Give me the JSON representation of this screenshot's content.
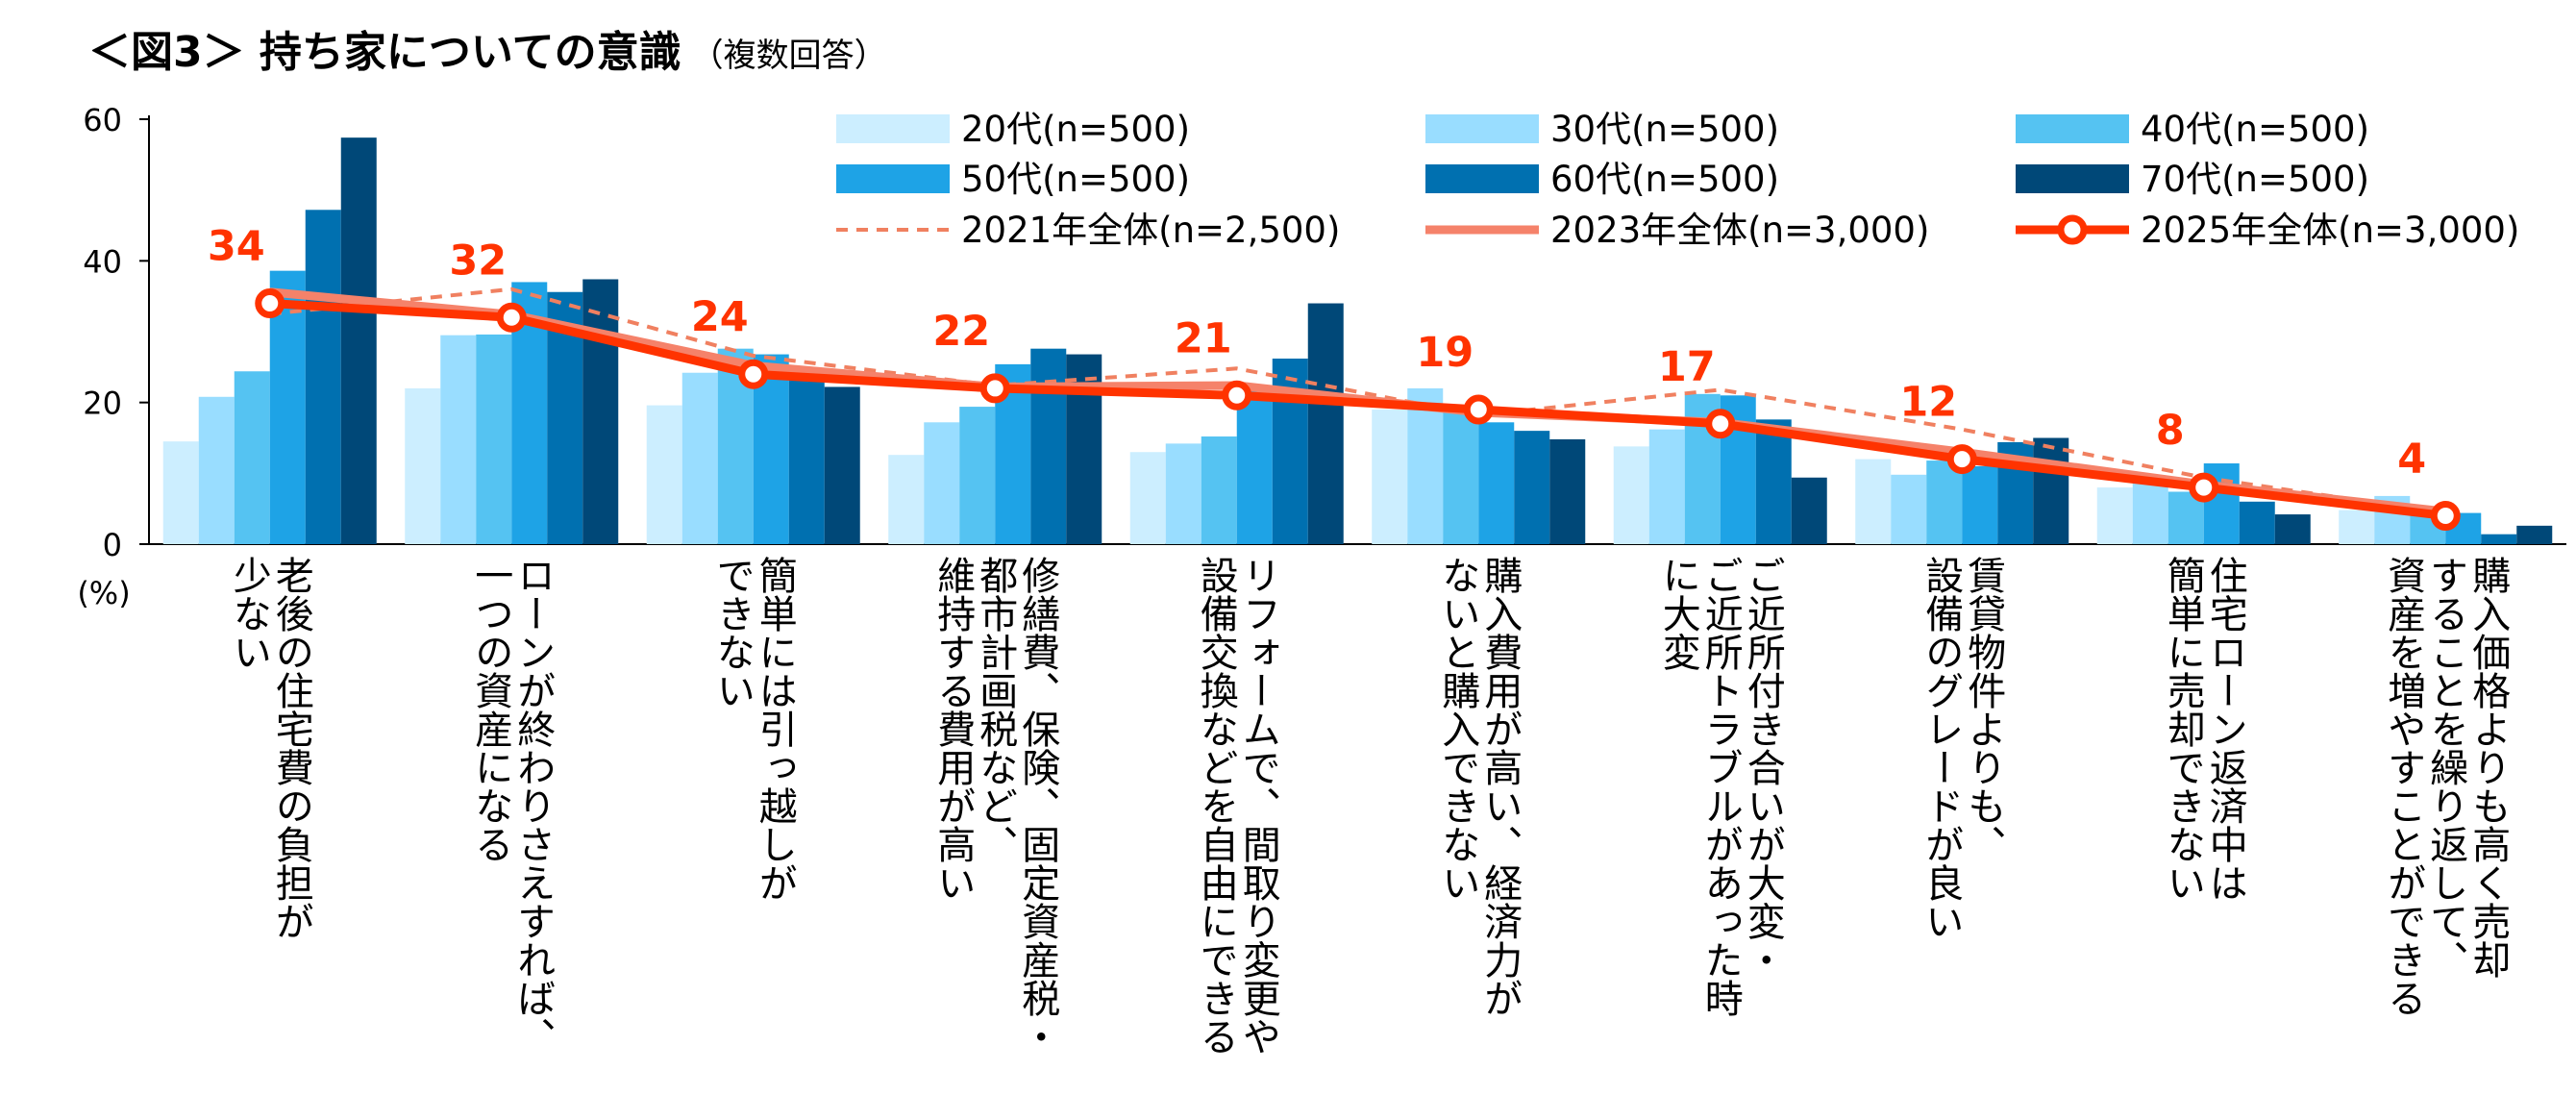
{
  "title": "＜図3＞ 持ち家についての意識",
  "subtitle": "（複数回答）",
  "chart_data": {
    "type": "bar",
    "unit_label": "(%)",
    "ylim": [
      0,
      60
    ],
    "yticks": [
      "0",
      "20",
      "40",
      "60"
    ],
    "grid": false,
    "legend_position": "top-right",
    "categories": [
      [
        "老後の住宅費の負担が",
        "少ない"
      ],
      [
        "ローンが終わりさえすれば、",
        "一つの資産になる"
      ],
      [
        "簡単には引っ越しが",
        "できない"
      ],
      [
        "修繕費、保険、固定資産税・",
        "都市計画税など、",
        "維持する費用が高い"
      ],
      [
        "リフォームで、間取り変更や",
        "設備交換などを自由にできる"
      ],
      [
        "購入費用が高い、経済力が",
        "ないと購入できない"
      ],
      [
        "ご近所付き合いが大変・",
        "ご近所トラブルがあった時",
        "に大変"
      ],
      [
        "賃貸物件よりも、",
        "設備のグレードが良い"
      ],
      [
        "住宅ローン返済中は",
        "簡単に売却できない"
      ],
      [
        "購入価格よりも高く売却",
        "することを繰り返して、",
        "資産を増やすことができる"
      ]
    ],
    "bar_series": [
      {
        "name": "20代(n=500)",
        "color": "#CCEEFF",
        "values": [
          14.5,
          22.0,
          19.6,
          12.6,
          13.0,
          19.0,
          13.8,
          12.0,
          8.0,
          4.8
        ]
      },
      {
        "name": "30代(n=500)",
        "color": "#99DDFF",
        "values": [
          20.8,
          29.5,
          24.2,
          17.2,
          14.2,
          22.0,
          16.2,
          9.8,
          8.6,
          6.8
        ]
      },
      {
        "name": "40代(n=500)",
        "color": "#55C3F2",
        "values": [
          24.4,
          29.6,
          27.6,
          19.4,
          15.2,
          19.0,
          21.2,
          11.8,
          7.4,
          5.0
        ]
      },
      {
        "name": "50代(n=500)",
        "color": "#1EA3E6",
        "values": [
          38.6,
          37.0,
          26.8,
          25.4,
          22.2,
          17.2,
          21.0,
          11.0,
          11.4,
          4.4
        ]
      },
      {
        "name": "60代(n=500)",
        "color": "#0070B0",
        "values": [
          47.2,
          35.6,
          24.0,
          27.6,
          26.2,
          16.0,
          17.6,
          14.4,
          6.0,
          1.4
        ]
      },
      {
        "name": "70代(n=500)",
        "color": "#004878",
        "values": [
          57.4,
          37.4,
          22.2,
          26.8,
          34.0,
          14.8,
          9.4,
          15.0,
          4.2,
          2.6
        ]
      }
    ],
    "line_series": [
      {
        "name": "2021年全体(n=2,500)",
        "style": "dashed",
        "color": "#F08060",
        "values": [
          32.5,
          36.0,
          26.6,
          22.4,
          24.8,
          18.2,
          21.8,
          16.2,
          9.4,
          4.4
        ]
      },
      {
        "name": "2023年全体(n=3,000)",
        "style": "solid",
        "color": "#F5826A",
        "values": [
          35.6,
          32.4,
          25.2,
          22.2,
          22.4,
          18.6,
          17.2,
          13.0,
          8.4,
          4.6
        ]
      },
      {
        "name": "2025年全体(n=3,000)",
        "style": "solid-marker",
        "color": "#FF3300",
        "values": [
          34,
          32,
          24,
          22,
          21,
          19,
          17,
          12,
          8,
          4
        ]
      }
    ],
    "data_labels": [
      "34",
      "32",
      "24",
      "22",
      "21",
      "19",
      "17",
      "12",
      "8",
      "4"
    ]
  }
}
